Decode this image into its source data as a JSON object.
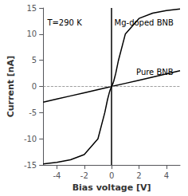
{
  "chart_data": {
    "type": "line",
    "xlabel": "Bias voltage [V]",
    "ylabel": "Current [nA]",
    "xlim": [
      -5,
      5
    ],
    "ylim": [
      -15,
      15
    ],
    "xticks": [
      -4,
      -2,
      0,
      2,
      4
    ],
    "yticks": [
      -15,
      -10,
      -5,
      0,
      5,
      10,
      15
    ],
    "grid": false,
    "annotations": [
      "T=290 K",
      "Mg-doped BNB",
      "Pure BNB"
    ],
    "series": [
      {
        "color": "black",
        "x": [
          -5,
          -4,
          -3,
          -2,
          -1,
          0,
          1,
          2,
          3,
          4,
          5
        ],
        "values": [
          -3.0,
          -2.4,
          -1.8,
          -1.2,
          -0.6,
          0.0,
          0.6,
          1.2,
          1.8,
          2.4,
          3.0
        ]
      },
      {
        "color": "black",
        "x": [
          -5,
          -4,
          -3,
          -2,
          -1,
          -0.5,
          -0.3,
          -0.2,
          -0.15,
          -0.1,
          -0.05,
          0.0,
          0.05,
          0.1,
          0.15,
          0.2,
          0.3,
          0.5,
          1,
          2,
          3,
          4,
          5
        ],
        "values": [
          -14.8,
          -14.5,
          -14.0,
          -13.0,
          -10.0,
          -5.0,
          -2.5,
          -1.5,
          -1.0,
          -0.6,
          -0.3,
          0.0,
          0.3,
          0.6,
          1.0,
          1.5,
          2.5,
          5.0,
          10.0,
          13.0,
          14.0,
          14.5,
          14.8
        ]
      }
    ]
  }
}
